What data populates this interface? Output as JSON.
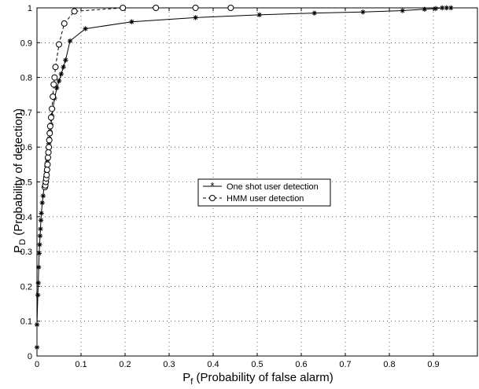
{
  "chart_data": {
    "type": "line",
    "title": "",
    "xlabel": {
      "main": "P",
      "sub": "f",
      "rest": " (Probability of false alarm)"
    },
    "ylabel": {
      "main": "P",
      "sub": "D",
      "rest": " (Probability of detection)"
    },
    "xlim": [
      0,
      1
    ],
    "ylim": [
      0,
      1
    ],
    "grid": true,
    "legend_position": "center",
    "x_ticks": [
      0,
      0.1,
      0.2,
      0.3,
      0.4,
      0.5,
      0.6,
      0.7,
      0.8,
      0.9
    ],
    "x_tick_labels": [
      "0",
      "0.1",
      "0.2",
      "0.3",
      "0.4",
      "0.5",
      "0.6",
      "0.7",
      "0.8",
      "0.9"
    ],
    "y_ticks": [
      0,
      0.1,
      0.2,
      0.3,
      0.4,
      0.5,
      0.6,
      0.7,
      0.8,
      0.9,
      1
    ],
    "y_tick_labels": [
      "0",
      "0.1",
      "0.2",
      "0.3",
      "0.4",
      "0.5",
      "0.6",
      "0.7",
      "0.8",
      "0.9",
      "1"
    ],
    "series": [
      {
        "name": "One shot user detection",
        "marker": "star",
        "linestyle": "solid",
        "color": "#000000",
        "x": [
          0,
          0,
          0.002,
          0.003,
          0.004,
          0.005,
          0.006,
          0.007,
          0.008,
          0.009,
          0.01,
          0.012,
          0.014,
          0.016,
          0.018,
          0.019,
          0.02,
          0.021,
          0.022,
          0.023,
          0.024,
          0.025,
          0.026,
          0.027,
          0.028,
          0.03,
          0.032,
          0.034,
          0.036,
          0.04,
          0.045,
          0.05,
          0.055,
          0.06,
          0.065,
          0.075,
          0.11,
          0.215,
          0.36,
          0.505,
          0.63,
          0.74,
          0.83,
          0.88,
          0.905,
          0.92,
          0.93,
          0.94
        ],
        "y": [
          0.025,
          0.09,
          0.175,
          0.21,
          0.255,
          0.295,
          0.32,
          0.345,
          0.365,
          0.39,
          0.41,
          0.44,
          0.46,
          0.485,
          0.495,
          0.505,
          0.515,
          0.53,
          0.545,
          0.555,
          0.565,
          0.58,
          0.595,
          0.61,
          0.625,
          0.645,
          0.665,
          0.69,
          0.71,
          0.74,
          0.77,
          0.79,
          0.81,
          0.83,
          0.85,
          0.905,
          0.94,
          0.96,
          0.972,
          0.98,
          0.985,
          0.988,
          0.992,
          0.996,
          0.998,
          1,
          1,
          1
        ]
      },
      {
        "name": "HMM user detection",
        "marker": "circle",
        "linestyle": "dashed",
        "color": "#000000",
        "x": [
          0.018,
          0.019,
          0.02,
          0.021,
          0.022,
          0.023,
          0.024,
          0.025,
          0.026,
          0.027,
          0.028,
          0.029,
          0.03,
          0.032,
          0.034,
          0.036,
          0.038,
          0.04,
          0.042,
          0.05,
          0.062,
          0.085,
          0.195,
          0.27,
          0.36,
          0.44
        ],
        "y": [
          0.485,
          0.49,
          0.5,
          0.51,
          0.52,
          0.535,
          0.55,
          0.57,
          0.585,
          0.6,
          0.62,
          0.64,
          0.66,
          0.685,
          0.71,
          0.745,
          0.78,
          0.8,
          0.83,
          0.895,
          0.955,
          0.99,
          1,
          1,
          1,
          1
        ]
      }
    ]
  }
}
